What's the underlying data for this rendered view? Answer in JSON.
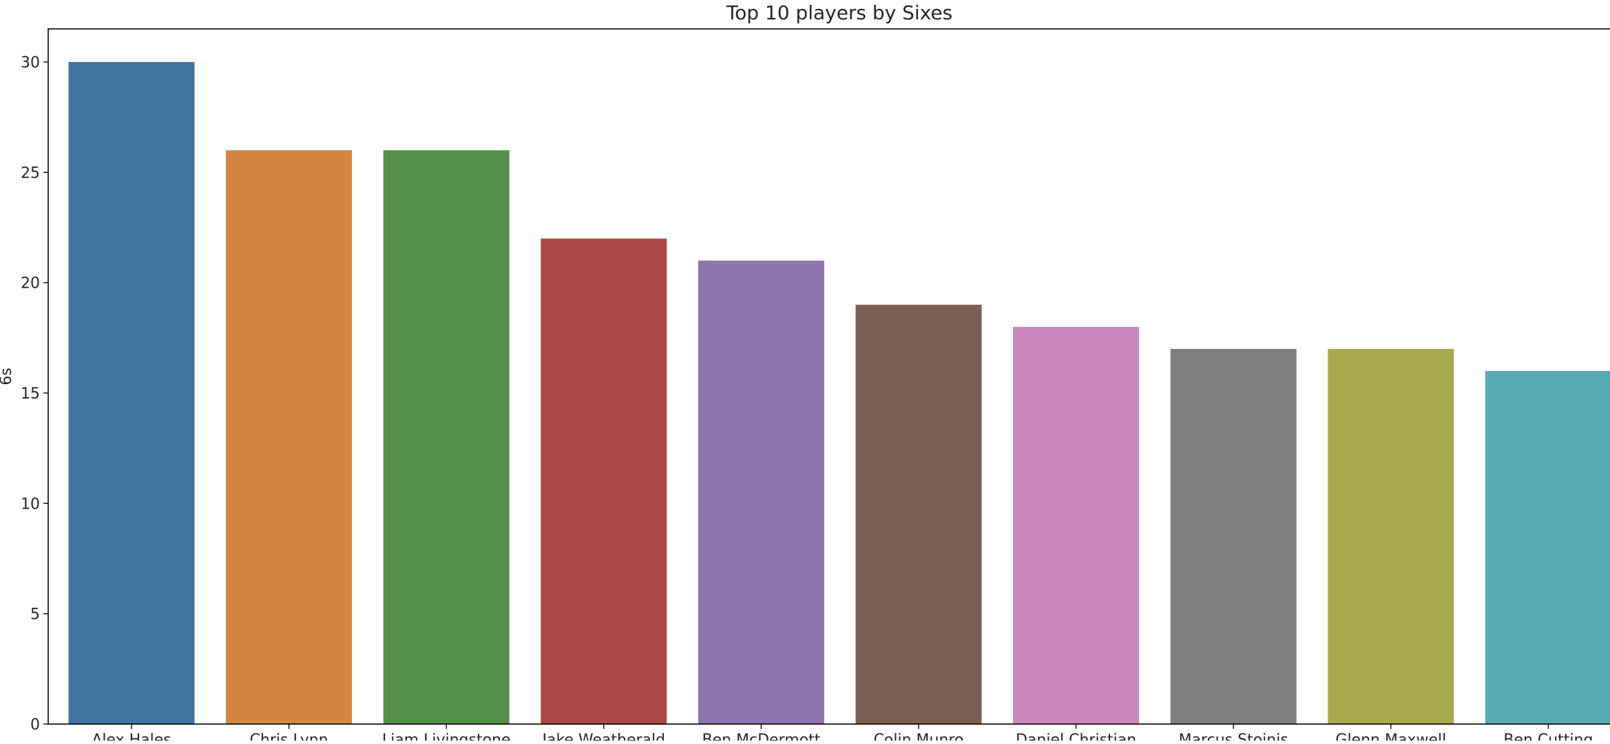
{
  "chart_data": {
    "type": "bar",
    "title": "Top 10 players by Sixes",
    "xlabel": "",
    "ylabel": "6s",
    "ylim": [
      0,
      31.5
    ],
    "yticks": [
      0,
      5,
      10,
      15,
      20,
      25,
      30
    ],
    "grid": false,
    "categories": [
      "Alex Hales",
      "Chris Lynn",
      "Liam Livingstone",
      "Jake Weatherald",
      "Ben McDermott",
      "Colin Munro",
      "Daniel Christian",
      "Marcus Stoinis",
      "Glenn Maxwell",
      "Ben Cutting"
    ],
    "values": [
      30,
      26,
      26,
      22,
      21,
      19,
      18,
      17,
      17,
      16
    ],
    "colors": [
      "#4374a0",
      "#d48640",
      "#528f47",
      "#ad4944",
      "#8f74ad",
      "#7d5e55",
      "#c987bb",
      "#7f7f7f",
      "#a8a94e",
      "#58a9b4"
    ]
  }
}
